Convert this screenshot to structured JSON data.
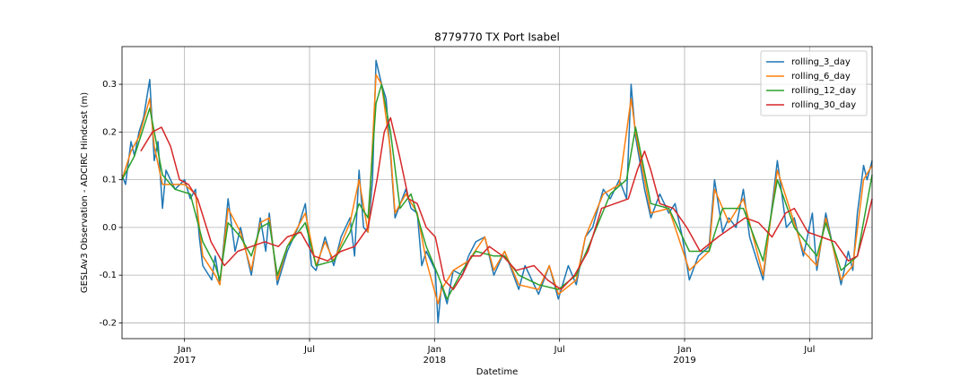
{
  "chart_data": {
    "type": "line",
    "title": "8779770 TX Port Isabel",
    "xlabel": "Datetime",
    "ylabel": "GESLAv3 Observation - ADCIRC Hindcast (m)",
    "xlim": [
      2016.75,
      2019.75
    ],
    "ylim": [
      -0.233,
      0.379
    ],
    "xticks": [
      {
        "value": 2017.0,
        "label": "Jan",
        "year": "2017"
      },
      {
        "value": 2017.5,
        "label": "Jul"
      },
      {
        "value": 2018.0,
        "label": "Jan",
        "year": "2018"
      },
      {
        "value": 2018.5,
        "label": "Jul"
      },
      {
        "value": 2019.0,
        "label": "Jan",
        "year": "2019"
      },
      {
        "value": 2019.5,
        "label": "Jul"
      }
    ],
    "yticks": [
      -0.2,
      -0.1,
      {
        "value": 0,
        "label": "0.0"
      },
      0.1,
      0.2,
      0.3
    ],
    "grid": true,
    "legend": "upper right",
    "series": [
      {
        "name": "rolling_3_day",
        "color": "#1f77b4",
        "x": [
          2016.75,
          2016.764,
          2016.786,
          2016.8,
          2016.818,
          2016.836,
          2016.861,
          2016.879,
          2016.894,
          2016.912,
          2016.926,
          2016.962,
          2017.0,
          2017.023,
          2017.044,
          2017.059,
          2017.073,
          2017.109,
          2017.123,
          2017.141,
          2017.174,
          2017.202,
          2017.224,
          2017.267,
          2017.303,
          2017.325,
          2017.339,
          2017.371,
          2017.411,
          2017.454,
          2017.483,
          2017.508,
          2017.526,
          2017.562,
          2017.597,
          2017.626,
          2017.662,
          2017.68,
          2017.698,
          2017.716,
          2017.734,
          2017.752,
          2017.766,
          2017.788,
          2017.806,
          2017.824,
          2017.842,
          2017.885,
          2017.906,
          2017.931,
          2017.949,
          2017.967,
          2018.003,
          2018.014,
          2018.028,
          2018.05,
          2018.075,
          2018.111,
          2018.136,
          2018.165,
          2018.201,
          2018.237,
          2018.28,
          2018.337,
          2018.362,
          2018.416,
          2018.459,
          2018.495,
          2018.535,
          2018.567,
          2018.603,
          2018.632,
          2018.675,
          2018.703,
          2018.739,
          2018.768,
          2018.786,
          2018.804,
          2018.84,
          2018.865,
          2018.901,
          2018.937,
          2018.962,
          2018.991,
          2019.019,
          2019.055,
          2019.098,
          2019.12,
          2019.152,
          2019.177,
          2019.206,
          2019.235,
          2019.26,
          2019.314,
          2019.342,
          2019.371,
          2019.407,
          2019.439,
          2019.475,
          2019.511,
          2019.529,
          2019.565,
          2019.626,
          2019.655,
          2019.673,
          2019.691,
          2019.716,
          2019.73,
          2019.75
        ],
        "values": [
          0.11,
          0.09,
          0.18,
          0.15,
          0.2,
          0.23,
          0.31,
          0.14,
          0.18,
          0.04,
          0.12,
          0.08,
          0.1,
          0.06,
          0.08,
          -0.02,
          -0.08,
          -0.11,
          -0.06,
          -0.12,
          0.06,
          -0.05,
          0.0,
          -0.1,
          0.02,
          -0.05,
          0.03,
          -0.12,
          -0.05,
          0.0,
          0.05,
          -0.08,
          -0.09,
          -0.02,
          -0.08,
          -0.02,
          0.02,
          -0.06,
          0.12,
          0.0,
          -0.01,
          0.1,
          0.35,
          0.3,
          0.27,
          0.15,
          0.02,
          0.08,
          0.04,
          0.03,
          -0.08,
          -0.05,
          -0.09,
          -0.2,
          -0.12,
          -0.16,
          -0.09,
          -0.1,
          -0.06,
          -0.03,
          -0.02,
          -0.1,
          -0.05,
          -0.13,
          -0.08,
          -0.14,
          -0.08,
          -0.15,
          -0.08,
          -0.12,
          -0.02,
          0.0,
          0.08,
          0.06,
          0.1,
          0.06,
          0.3,
          0.19,
          0.08,
          0.02,
          0.07,
          0.03,
          0.05,
          -0.02,
          -0.11,
          -0.06,
          -0.04,
          0.1,
          -0.01,
          0.02,
          0.0,
          0.08,
          -0.02,
          -0.11,
          0.01,
          0.14,
          0.0,
          0.02,
          -0.06,
          0.03,
          -0.09,
          0.03,
          -0.12,
          -0.05,
          -0.09,
          0.03,
          0.13,
          0.1,
          0.14
        ]
      },
      {
        "name": "rolling_6_day",
        "color": "#ff7f0e",
        "x": [
          2016.75,
          2016.786,
          2016.818,
          2016.861,
          2016.879,
          2016.912,
          2016.962,
          2017.0,
          2017.044,
          2017.073,
          2017.123,
          2017.141,
          2017.174,
          2017.224,
          2017.267,
          2017.303,
          2017.339,
          2017.371,
          2017.411,
          2017.483,
          2017.526,
          2017.562,
          2017.597,
          2017.662,
          2017.698,
          2017.734,
          2017.766,
          2017.788,
          2017.824,
          2017.842,
          2017.885,
          2017.931,
          2017.967,
          2018.014,
          2018.028,
          2018.075,
          2018.136,
          2018.201,
          2018.237,
          2018.28,
          2018.337,
          2018.416,
          2018.459,
          2018.495,
          2018.567,
          2018.603,
          2018.675,
          2018.739,
          2018.786,
          2018.804,
          2018.865,
          2018.937,
          2019.019,
          2019.098,
          2019.12,
          2019.177,
          2019.235,
          2019.314,
          2019.371,
          2019.439,
          2019.475,
          2019.529,
          2019.565,
          2019.626,
          2019.673,
          2019.716,
          2019.75
        ],
        "values": [
          0.1,
          0.16,
          0.19,
          0.27,
          0.17,
          0.09,
          0.09,
          0.09,
          0.07,
          -0.06,
          -0.1,
          -0.12,
          0.04,
          -0.01,
          -0.09,
          0.01,
          0.02,
          -0.11,
          -0.04,
          0.03,
          -0.08,
          -0.03,
          -0.07,
          0.01,
          0.1,
          -0.01,
          0.32,
          0.3,
          0.16,
          0.03,
          0.07,
          0.03,
          -0.07,
          -0.16,
          -0.13,
          -0.09,
          -0.07,
          -0.02,
          -0.09,
          -0.05,
          -0.12,
          -0.13,
          -0.08,
          -0.14,
          -0.11,
          -0.02,
          0.07,
          0.09,
          0.27,
          0.2,
          0.03,
          0.04,
          -0.09,
          -0.05,
          0.08,
          0.01,
          0.06,
          -0.1,
          0.12,
          0.01,
          -0.05,
          -0.08,
          0.02,
          -0.11,
          -0.08,
          0.1,
          0.13
        ]
      },
      {
        "name": "rolling_12_day",
        "color": "#2ca02c",
        "x": [
          2016.75,
          2016.8,
          2016.861,
          2016.912,
          2016.962,
          2017.023,
          2017.073,
          2017.123,
          2017.141,
          2017.174,
          2017.224,
          2017.267,
          2017.303,
          2017.339,
          2017.371,
          2017.411,
          2017.483,
          2017.526,
          2017.597,
          2017.662,
          2017.698,
          2017.734,
          2017.766,
          2017.788,
          2017.824,
          2017.862,
          2017.906,
          2017.967,
          2018.014,
          2018.05,
          2018.111,
          2018.165,
          2018.237,
          2018.28,
          2018.337,
          2018.416,
          2018.495,
          2018.567,
          2018.632,
          2018.703,
          2018.768,
          2018.804,
          2018.865,
          2018.937,
          2019.019,
          2019.098,
          2019.152,
          2019.235,
          2019.314,
          2019.371,
          2019.439,
          2019.529,
          2019.565,
          2019.626,
          2019.691,
          2019.75
        ],
        "values": [
          0.1,
          0.15,
          0.25,
          0.11,
          0.08,
          0.07,
          -0.03,
          -0.08,
          -0.11,
          0.01,
          -0.02,
          -0.06,
          0.0,
          0.01,
          -0.1,
          -0.04,
          0.01,
          -0.08,
          -0.07,
          -0.01,
          0.05,
          0.02,
          0.26,
          0.3,
          0.2,
          0.04,
          0.07,
          -0.04,
          -0.1,
          -0.15,
          -0.09,
          -0.05,
          -0.06,
          -0.06,
          -0.1,
          -0.12,
          -0.13,
          -0.1,
          -0.02,
          0.07,
          0.1,
          0.21,
          0.05,
          0.04,
          -0.05,
          -0.05,
          0.04,
          0.04,
          -0.07,
          0.1,
          0.0,
          -0.06,
          0.01,
          -0.09,
          -0.06,
          0.11
        ]
      },
      {
        "name": "rolling_30_day",
        "color": "#d62728",
        "x": [
          2016.825,
          2016.872,
          2016.908,
          2016.944,
          2016.98,
          2017.016,
          2017.052,
          2017.106,
          2017.159,
          2017.213,
          2017.267,
          2017.321,
          2017.375,
          2017.411,
          2017.465,
          2017.518,
          2017.572,
          2017.626,
          2017.68,
          2017.734,
          2017.77,
          2017.799,
          2017.824,
          2017.86,
          2017.896,
          2017.931,
          2017.967,
          2018.003,
          2018.039,
          2018.075,
          2018.111,
          2018.147,
          2018.183,
          2018.219,
          2018.273,
          2018.326,
          2018.398,
          2018.452,
          2018.506,
          2018.56,
          2018.614,
          2018.668,
          2018.721,
          2018.775,
          2018.811,
          2018.84,
          2018.865,
          2018.901,
          2018.955,
          2019.009,
          2019.062,
          2019.134,
          2019.188,
          2019.242,
          2019.296,
          2019.35,
          2019.404,
          2019.439,
          2019.493,
          2019.547,
          2019.601,
          2019.655,
          2019.691,
          2019.727,
          2019.75
        ],
        "values": [
          0.16,
          0.2,
          0.21,
          0.17,
          0.1,
          0.09,
          0.06,
          -0.03,
          -0.08,
          -0.05,
          -0.04,
          -0.03,
          -0.04,
          -0.02,
          -0.01,
          -0.06,
          -0.07,
          -0.05,
          -0.04,
          0.0,
          0.1,
          0.2,
          0.23,
          0.15,
          0.06,
          0.05,
          0.0,
          -0.02,
          -0.11,
          -0.13,
          -0.1,
          -0.06,
          -0.06,
          -0.04,
          -0.06,
          -0.09,
          -0.08,
          -0.11,
          -0.13,
          -0.1,
          -0.05,
          0.04,
          0.05,
          0.06,
          0.12,
          0.16,
          0.12,
          0.05,
          0.04,
          0.0,
          -0.05,
          -0.02,
          0.0,
          0.02,
          0.01,
          -0.02,
          0.03,
          0.04,
          -0.01,
          -0.02,
          -0.03,
          -0.07,
          -0.06,
          0.01,
          0.06
        ]
      }
    ]
  }
}
